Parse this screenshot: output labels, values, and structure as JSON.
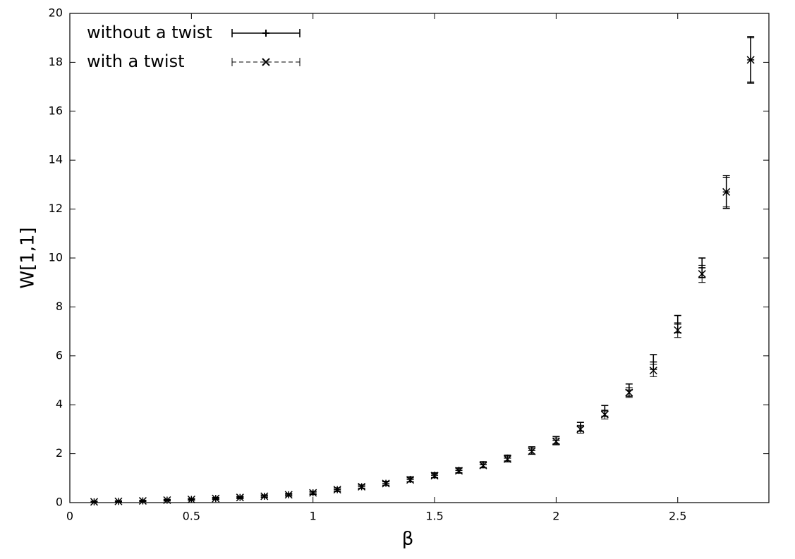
{
  "chart_data": {
    "type": "scatter",
    "x_label": "β",
    "y_label": "W[1,1]",
    "x": [
      0.1,
      0.2,
      0.3,
      0.4,
      0.5,
      0.6,
      0.7,
      0.8,
      0.9,
      1.0,
      1.1,
      1.2,
      1.3,
      1.4,
      1.5,
      1.6,
      1.7,
      1.8,
      1.9,
      2.0,
      2.1,
      2.2,
      2.3,
      2.4,
      2.5,
      2.6,
      2.7,
      2.8
    ],
    "series": [
      {
        "name": "without a twist",
        "color": "#000000",
        "marker": "plus",
        "dashed": false,
        "values": [
          0.03,
          0.05,
          0.07,
          0.1,
          0.13,
          0.17,
          0.21,
          0.26,
          0.32,
          0.4,
          0.53,
          0.65,
          0.79,
          0.95,
          1.12,
          1.32,
          1.55,
          1.82,
          2.13,
          2.55,
          3.1,
          3.75,
          4.6,
          5.75,
          7.3,
          9.6,
          12.7,
          18.1
        ],
        "errors": [
          0.02,
          0.02,
          0.02,
          0.03,
          0.03,
          0.04,
          0.04,
          0.05,
          0.05,
          0.06,
          0.07,
          0.07,
          0.08,
          0.1,
          0.1,
          0.1,
          0.12,
          0.12,
          0.15,
          0.15,
          0.18,
          0.22,
          0.25,
          0.3,
          0.35,
          0.4,
          0.67,
          0.95
        ]
      },
      {
        "name": "with a twist",
        "color": "#000000",
        "marker": "cross",
        "dashed": true,
        "values": [
          0.03,
          0.05,
          0.07,
          0.1,
          0.13,
          0.17,
          0.21,
          0.26,
          0.32,
          0.4,
          0.53,
          0.65,
          0.78,
          0.93,
          1.1,
          1.3,
          1.52,
          1.78,
          2.1,
          2.5,
          3.0,
          3.6,
          4.5,
          5.4,
          7.05,
          9.35,
          12.7,
          18.1
        ],
        "errors": [
          0.02,
          0.02,
          0.02,
          0.03,
          0.03,
          0.04,
          0.04,
          0.05,
          0.05,
          0.06,
          0.06,
          0.07,
          0.07,
          0.08,
          0.09,
          0.1,
          0.1,
          0.12,
          0.12,
          0.14,
          0.16,
          0.18,
          0.2,
          0.25,
          0.3,
          0.35,
          0.6,
          0.9
        ]
      }
    ],
    "xlim": [
      0,
      2.875
    ],
    "ylim": [
      0,
      20
    ],
    "xticks": [
      0,
      0.5,
      1,
      1.5,
      2,
      2.5
    ],
    "yticks": [
      0,
      2,
      4,
      6,
      8,
      10,
      12,
      14,
      16,
      18,
      20
    ],
    "legend": "top-left",
    "grid": false
  }
}
